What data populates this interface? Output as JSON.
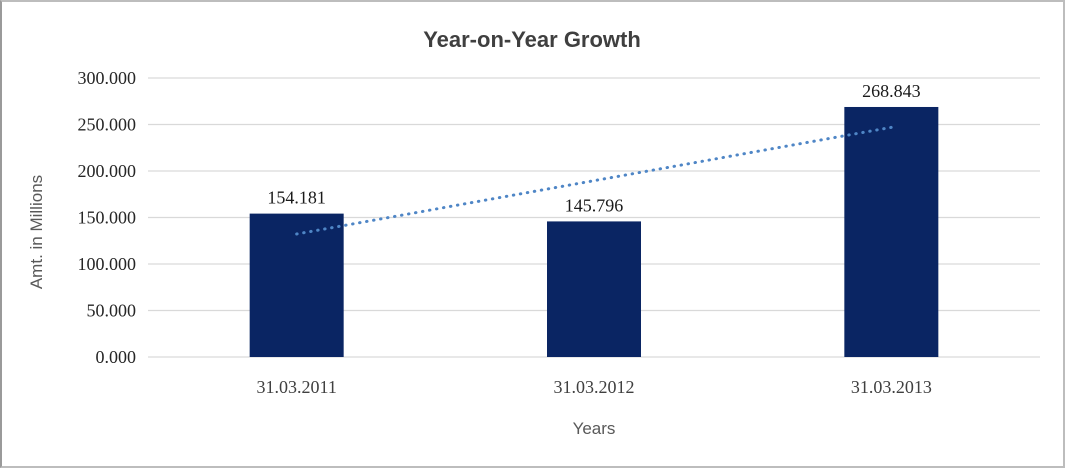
{
  "chart_data": {
    "type": "bar",
    "title": "Year-on-Year Growth",
    "xlabel": "Years",
    "ylabel": "Amt. in Millions",
    "categories": [
      "31.03.2011",
      "31.03.2012",
      "31.03.2013"
    ],
    "values": [
      154.181,
      145.796,
      268.843
    ],
    "data_labels": [
      "154.181",
      "145.796",
      "268.843"
    ],
    "ylim": [
      0,
      300
    ],
    "ytick_step": 50,
    "ytick_labels": [
      "0.000",
      "50.000",
      "100.000",
      "150.000",
      "200.000",
      "250.000",
      "300.000"
    ],
    "grid": true,
    "legend": "none",
    "trendline": {
      "type": "linear",
      "style": "dotted"
    },
    "colors": {
      "bar": "#0a2563",
      "gridline": "#d9d9d9",
      "trendline": "#4f86c6",
      "title_text": "#3f3f3f",
      "tick_text": "#262626",
      "category_text": "#404040",
      "data_label_text": "#1a1a1a",
      "axis_title_text": "#595959",
      "frame_border": "#bdbdbd",
      "background": "#ffffff"
    }
  }
}
